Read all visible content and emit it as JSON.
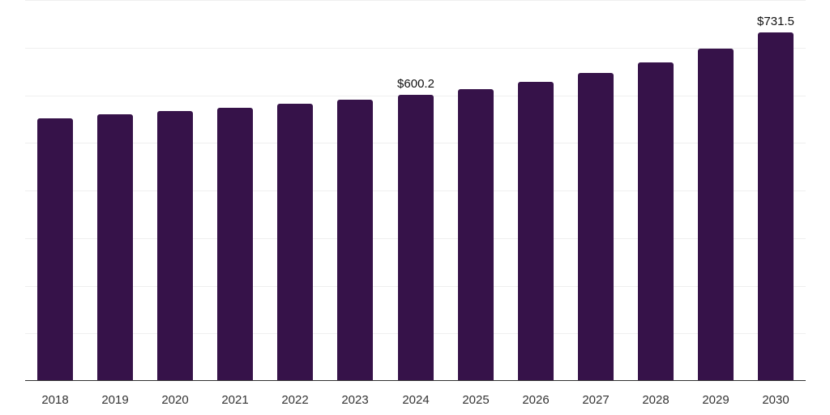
{
  "chart_data": {
    "type": "bar",
    "title": "",
    "xlabel": "",
    "ylabel": "",
    "categories": [
      "2018",
      "2019",
      "2020",
      "2021",
      "2022",
      "2023",
      "2024",
      "2025",
      "2026",
      "2027",
      "2028",
      "2029",
      "2030"
    ],
    "values": [
      550.7,
      559.2,
      566.1,
      572.9,
      581.4,
      590.0,
      600.2,
      612.1,
      627.4,
      646.2,
      668.4,
      697.3,
      731.5
    ],
    "data_labels": [
      {
        "category": "2024",
        "text": "$600.2"
      },
      {
        "category": "2030",
        "text": "$731.5"
      }
    ],
    "ylim": [
      0,
      800
    ],
    "grid": true,
    "legend": null,
    "bar_color": "#361249",
    "currency_prefix": "$"
  }
}
